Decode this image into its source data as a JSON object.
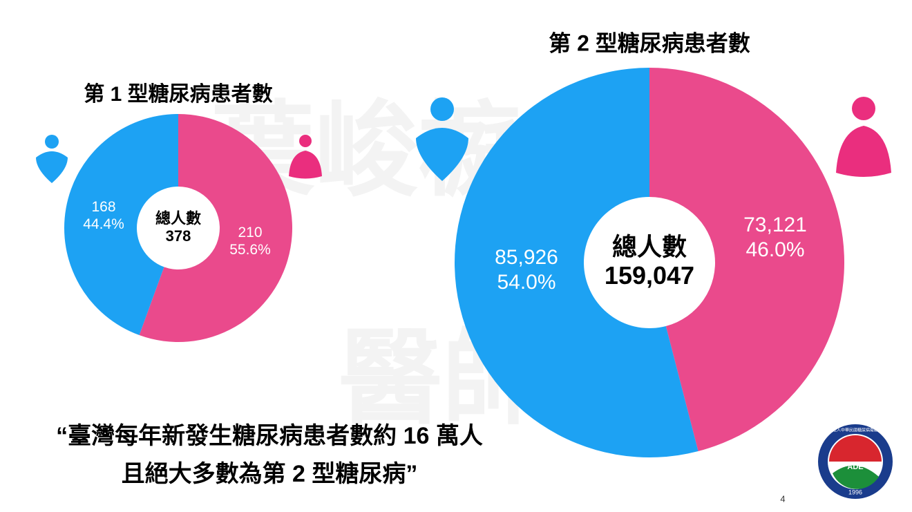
{
  "chart_data": [
    {
      "type": "pie",
      "title": "第 1 型糖尿病患者數",
      "values": [
        210,
        168
      ],
      "colors": [
        "#ea4a8c",
        "#1da2f3"
      ],
      "percent_labels": [
        "55.6%",
        "44.4%"
      ],
      "center_label": "總人數",
      "total": 378
    },
    {
      "type": "pie",
      "title": "第 2 型糖尿病患者數",
      "values": [
        73121,
        85926
      ],
      "colors": [
        "#ea4a8c",
        "#1da2f3"
      ],
      "value_labels": [
        "73,121",
        "85,926"
      ],
      "percent_labels": [
        "46.0%",
        "54.0%"
      ],
      "center_label": "總人數",
      "total": {
        "value": 159047,
        "label": "159,047"
      }
    }
  ],
  "watermark": [
    "葉峻榳",
    "醫師"
  ],
  "quote": [
    "“臺灣每年新發生糖尿病患者數約 16 萬人",
    "且絕大多數為第 2 型糖尿病”"
  ],
  "logo": {
    "name": "社團法人中華民國糖尿病衛教學會",
    "abbr": "ADE",
    "year": "1996"
  },
  "page_number": "4"
}
